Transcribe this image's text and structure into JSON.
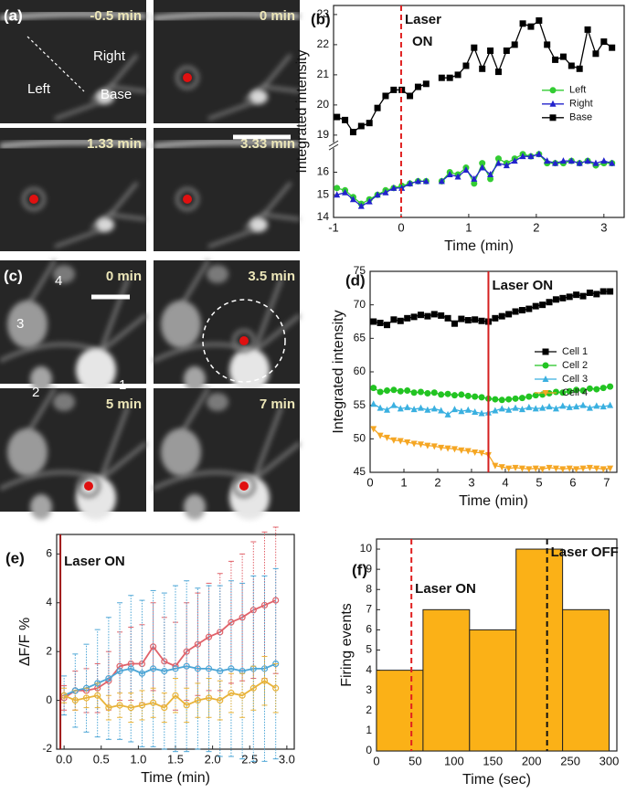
{
  "images": [
    {
      "panel": "(a)",
      "frames": [
        {
          "time": "-0.5 min"
        },
        {
          "time": "0 min"
        },
        {
          "time": "1.33 min"
        },
        {
          "time": "3.33 min"
        }
      ],
      "labels": [
        "Right",
        "Left",
        "Base"
      ]
    },
    {
      "panel": "(c)",
      "frames": [
        {
          "time": "0 min"
        },
        {
          "time": "3.5 min"
        },
        {
          "time": "5 min"
        },
        {
          "time": "7 min"
        }
      ],
      "labels": [
        "4",
        "3",
        "2",
        "1"
      ]
    }
  ],
  "chart_data": [
    {
      "panel": "(b)",
      "type": "line",
      "x_label": "Time (min)",
      "y_label": "Integrated intensity",
      "xlim": [
        -1,
        3.3
      ],
      "xticks": [
        -1,
        0,
        1,
        2,
        3
      ],
      "ylim": [
        14,
        23.3
      ],
      "yticks": [
        14,
        15,
        16,
        19,
        20,
        21,
        22,
        23
      ],
      "axis_break": [
        17,
        18.8
      ],
      "legend": "right",
      "annotations": [
        {
          "text": [
            "Laser",
            "ON"
          ],
          "x": 0,
          "color": "#e02020",
          "style": "dashed"
        }
      ],
      "x": [
        -0.95,
        -0.83,
        -0.71,
        -0.59,
        -0.47,
        -0.35,
        -0.23,
        -0.11,
        0.01,
        0.13,
        0.25,
        0.37,
        0.45,
        0.6,
        0.72,
        0.84,
        0.96,
        1.08,
        1.2,
        1.32,
        1.44,
        1.56,
        1.68,
        1.8,
        1.92,
        2.04,
        2.16,
        2.28,
        2.4,
        2.52,
        2.64,
        2.76,
        2.88,
        3.0,
        3.12
      ],
      "series": [
        {
          "name": "Left",
          "color": "#33cc33",
          "marker": "circle",
          "values": [
            15.3,
            15.2,
            14.9,
            14.6,
            14.8,
            15.0,
            15.2,
            15.3,
            15.4,
            15.5,
            15.6,
            15.6,
            null,
            15.6,
            16.0,
            15.9,
            16.2,
            15.5,
            16.4,
            15.7,
            16.6,
            16.4,
            16.6,
            16.8,
            16.7,
            16.8,
            16.4,
            16.4,
            16.4,
            16.5,
            16.4,
            16.5,
            16.3,
            16.4,
            16.4
          ]
        },
        {
          "name": "Right",
          "color": "#2222cc",
          "marker": "triangle",
          "values": [
            15.0,
            15.1,
            14.8,
            14.5,
            14.7,
            15.0,
            15.1,
            15.3,
            15.3,
            15.5,
            15.6,
            15.6,
            null,
            15.6,
            15.9,
            15.8,
            16.1,
            15.7,
            16.2,
            15.9,
            16.4,
            16.3,
            16.5,
            16.7,
            16.7,
            16.8,
            16.5,
            16.4,
            16.5,
            16.5,
            16.4,
            16.5,
            16.4,
            16.5,
            16.4
          ]
        },
        {
          "name": "Base",
          "color": "#000000",
          "marker": "square",
          "values": [
            19.6,
            19.5,
            19.1,
            19.3,
            19.4,
            19.9,
            20.3,
            20.5,
            20.5,
            20.3,
            20.6,
            20.7,
            null,
            20.9,
            20.9,
            21.0,
            21.3,
            21.9,
            21.2,
            21.8,
            21.1,
            21.8,
            22.0,
            22.7,
            22.6,
            22.8,
            22.0,
            21.5,
            21.6,
            21.3,
            21.2,
            22.5,
            21.7,
            22.1,
            21.9
          ]
        }
      ]
    },
    {
      "panel": "(d)",
      "type": "line",
      "x_label": "Time (min)",
      "y_label": "Integrated intensity",
      "xlim": [
        0,
        7.3
      ],
      "xticks": [
        0,
        1,
        2,
        3,
        4,
        5,
        6,
        7
      ],
      "ylim": [
        45,
        75
      ],
      "yticks": [
        45,
        50,
        55,
        60,
        65,
        70,
        75
      ],
      "legend": "right",
      "annotations": [
        {
          "text": [
            "Laser ON"
          ],
          "x": 3.5,
          "color": "#d42020",
          "style": "solid"
        }
      ],
      "x": [
        0.1,
        0.3,
        0.5,
        0.7,
        0.9,
        1.1,
        1.3,
        1.5,
        1.7,
        1.9,
        2.1,
        2.3,
        2.5,
        2.7,
        2.9,
        3.1,
        3.3,
        3.5,
        3.7,
        3.9,
        4.1,
        4.3,
        4.5,
        4.7,
        4.9,
        5.1,
        5.3,
        5.5,
        5.7,
        5.9,
        6.1,
        6.3,
        6.5,
        6.7,
        6.9,
        7.1
      ],
      "series": [
        {
          "name": "Cell 1",
          "color": "#000000",
          "marker": "square",
          "values": [
            67.5,
            67.3,
            67.0,
            67.8,
            67.6,
            68.0,
            68.2,
            68.5,
            68.3,
            68.6,
            68.4,
            68.0,
            67.2,
            67.9,
            67.7,
            67.8,
            67.6,
            67.5,
            68.0,
            68.3,
            68.6,
            69.0,
            69.2,
            69.4,
            69.8,
            70.0,
            70.4,
            70.8,
            71.0,
            71.2,
            71.5,
            71.3,
            71.8,
            71.6,
            72.0,
            72.0
          ]
        },
        {
          "name": "Cell 2",
          "color": "#22c422",
          "marker": "circle",
          "values": [
            57.6,
            57.0,
            57.2,
            57.3,
            57.1,
            57.2,
            56.9,
            57.0,
            56.8,
            56.9,
            56.6,
            56.7,
            56.5,
            56.6,
            56.4,
            56.3,
            56.2,
            56.0,
            55.9,
            55.8,
            55.9,
            56.0,
            56.1,
            56.3,
            56.5,
            56.6,
            56.8,
            57.0,
            56.9,
            57.1,
            57.3,
            57.2,
            57.5,
            57.4,
            57.6,
            57.8
          ]
        },
        {
          "name": "Cell 3",
          "color": "#3ab0e0",
          "marker": "triangle",
          "values": [
            55.2,
            54.6,
            54.3,
            55.0,
            54.5,
            54.7,
            54.4,
            54.6,
            54.3,
            54.5,
            54.2,
            53.6,
            54.4,
            54.1,
            54.3,
            54.0,
            53.8,
            53.9,
            54.2,
            54.5,
            54.3,
            54.6,
            54.4,
            54.7,
            54.5,
            54.6,
            54.8,
            54.5,
            54.9,
            54.7,
            54.8,
            55.0,
            54.6,
            54.9,
            54.8,
            55.0
          ]
        },
        {
          "name": "Cell 4",
          "color": "#f5a623",
          "marker": "triangle-down",
          "values": [
            51.5,
            50.5,
            50.2,
            49.8,
            49.7,
            49.5,
            49.3,
            49.2,
            49.0,
            48.9,
            48.7,
            48.6,
            48.5,
            48.3,
            48.2,
            48.0,
            47.9,
            47.6,
            46.0,
            45.8,
            45.6,
            45.7,
            45.6,
            45.5,
            45.6,
            45.5,
            45.7,
            45.6,
            45.5,
            45.6,
            45.5,
            45.6,
            45.7,
            45.6,
            45.5,
            45.6
          ]
        }
      ]
    },
    {
      "panel": "(e)",
      "type": "line",
      "x_label": "Time (min)",
      "y_label": "ΔF/F %",
      "xlim": [
        -0.1,
        3.1
      ],
      "xticks": [
        {
          "value": 0,
          "label": "0.0"
        },
        0.5,
        {
          "value": 1,
          "label": "1.0"
        },
        1.5,
        {
          "value": 2,
          "label": "2.0"
        },
        2.5,
        {
          "value": 3,
          "label": "3.0"
        }
      ],
      "ylim": [
        -2,
        6.8
      ],
      "yticks": [
        -2,
        0,
        2,
        4,
        6
      ],
      "annotations": [
        {
          "text": [
            "Laser ON"
          ],
          "x": -0.05,
          "color": "#a01818",
          "style": "solid"
        }
      ],
      "x": [
        0,
        0.15,
        0.3,
        0.45,
        0.6,
        0.75,
        0.9,
        1.05,
        1.2,
        1.35,
        1.5,
        1.65,
        1.8,
        1.95,
        2.1,
        2.25,
        2.4,
        2.55,
        2.7,
        2.85
      ],
      "series": [
        {
          "color": "#e0626a",
          "marker": "circle-open",
          "values": [
            0.1,
            0.4,
            0.4,
            0.5,
            0.8,
            1.4,
            1.5,
            1.5,
            2.2,
            1.6,
            1.4,
            2.0,
            2.3,
            2.6,
            2.8,
            3.2,
            3.4,
            3.7,
            3.9,
            4.1
          ],
          "errors": [
            0.5,
            0.8,
            0.9,
            1.0,
            1.2,
            1.4,
            1.5,
            1.6,
            1.8,
            1.8,
            1.8,
            2.0,
            2.1,
            2.2,
            2.4,
            2.5,
            2.6,
            2.8,
            3.0,
            3.0
          ]
        },
        {
          "color": "#4da6d6",
          "marker": "circle-open",
          "values": [
            0.2,
            0.4,
            0.5,
            0.7,
            0.9,
            1.2,
            1.3,
            1.1,
            1.3,
            1.2,
            1.3,
            1.4,
            1.3,
            1.3,
            1.2,
            1.3,
            1.2,
            1.3,
            1.3,
            1.5
          ],
          "errors": [
            0.8,
            1.5,
            1.8,
            2.2,
            2.5,
            2.8,
            3.0,
            3.0,
            3.2,
            3.2,
            3.4,
            3.5,
            3.3,
            3.4,
            3.5,
            3.6,
            3.6,
            3.8,
            3.8,
            3.9
          ]
        },
        {
          "color": "#e8b33a",
          "marker": "circle-open",
          "values": [
            0.2,
            0.0,
            0.1,
            0.2,
            -0.3,
            -0.2,
            -0.3,
            -0.2,
            -0.1,
            -0.3,
            0.2,
            -0.2,
            0.0,
            0.1,
            0.0,
            0.3,
            0.2,
            0.5,
            0.8,
            0.5
          ],
          "errors": [
            0.3,
            0.4,
            0.4,
            0.5,
            0.5,
            0.5,
            0.6,
            0.6,
            0.6,
            0.6,
            0.7,
            0.7,
            0.7,
            0.8,
            0.8,
            0.8,
            0.9,
            0.9,
            1.0,
            1.0
          ]
        }
      ]
    },
    {
      "panel": "(f)",
      "type": "histogram",
      "x_label": "Time (sec)",
      "y_label": "Firing events",
      "xlim": [
        0,
        310
      ],
      "xticks": [
        0,
        50,
        100,
        150,
        200,
        250,
        300
      ],
      "ylim": [
        0,
        10.5
      ],
      "yticks": [
        0,
        1,
        2,
        3,
        4,
        5,
        6,
        7,
        8,
        9,
        10
      ],
      "bins": [
        0,
        60,
        120,
        180,
        240,
        300
      ],
      "values": [
        4,
        7,
        6,
        10,
        7
      ],
      "color": "#fbb117",
      "annotations": [
        {
          "text": [
            "Laser ON"
          ],
          "x": 45,
          "color": "#e02020",
          "style": "dashed"
        },
        {
          "text": [
            "Laser OFF"
          ],
          "x": 220,
          "color": "#111111",
          "style": "dashed"
        }
      ]
    }
  ]
}
